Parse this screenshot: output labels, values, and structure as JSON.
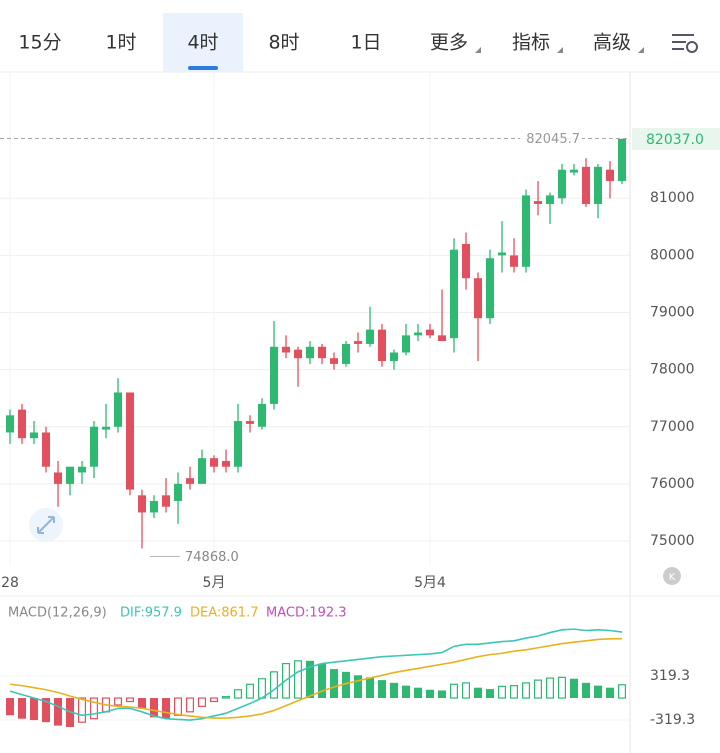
{
  "tabs": [
    "15分",
    "1时",
    "4时",
    "8时",
    "1日",
    "更多",
    "指标",
    "高级"
  ],
  "selected_tab": 2,
  "chart_data": [
    {
      "type": "candlestick",
      "categories": [
        "28",
        null,
        null,
        null,
        null,
        null,
        null,
        null,
        null,
        null,
        null,
        null,
        null,
        null,
        null,
        null,
        null,
        "5月",
        null,
        null,
        null,
        null,
        null,
        null,
        null,
        null,
        null,
        null,
        null,
        null,
        null,
        null,
        null,
        null,
        null,
        "5月4",
        null,
        null,
        null,
        null,
        null,
        null,
        null,
        null,
        null,
        null,
        null,
        null,
        null,
        null,
        null,
        null
      ],
      "open": [
        76900,
        77300,
        76800,
        76900,
        76200,
        76000,
        76200,
        76300,
        76950,
        77000,
        77600,
        75800,
        75500,
        75800,
        75700,
        76100,
        76000,
        76450,
        76400,
        76300,
        77100,
        77000,
        77400,
        78400,
        78350,
        78200,
        78400,
        78200,
        78100,
        78500,
        78450,
        78700,
        78150,
        78300,
        78600,
        78700,
        78600,
        78550,
        80200,
        79600,
        78900,
        80000,
        80000,
        79800,
        80950,
        80900,
        81000,
        81450,
        81550,
        80900,
        81500,
        81300
      ],
      "high": [
        77300,
        77400,
        77100,
        77000,
        76400,
        76300,
        76400,
        77100,
        77400,
        77850,
        77600,
        75900,
        75800,
        76100,
        76200,
        76300,
        76600,
        76500,
        76600,
        77400,
        77200,
        77500,
        78850,
        78600,
        78400,
        78500,
        78450,
        78300,
        78500,
        78650,
        79100,
        78800,
        78350,
        78800,
        78800,
        78800,
        79400,
        80300,
        80400,
        79700,
        80100,
        80600,
        80300,
        81150,
        81300,
        81100,
        81600,
        81600,
        81700,
        81600,
        81650,
        82045.7
      ],
      "low": [
        76700,
        76700,
        76700,
        76200,
        75600,
        75800,
        76000,
        76100,
        76800,
        76900,
        75800,
        74868,
        75400,
        75500,
        75300,
        75900,
        76000,
        76200,
        76200,
        76200,
        76900,
        76950,
        77300,
        78200,
        77700,
        78100,
        78100,
        78000,
        78050,
        78300,
        78400,
        78050,
        78000,
        78250,
        78500,
        78550,
        78500,
        78300,
        79400,
        78150,
        78800,
        79700,
        79700,
        79700,
        80700,
        80550,
        80900,
        81400,
        80850,
        80650,
        81000,
        81250
      ],
      "close": [
        77200,
        76800,
        76900,
        76300,
        76000,
        76300,
        76300,
        77000,
        77000,
        77600,
        75900,
        75500,
        75700,
        75600,
        76000,
        76000,
        76450,
        76300,
        76300,
        77100,
        77050,
        77400,
        78400,
        78300,
        78200,
        78400,
        78200,
        78100,
        78450,
        78450,
        78700,
        78150,
        78300,
        78600,
        78650,
        78600,
        78500,
        80100,
        79600,
        78900,
        79950,
        80050,
        79800,
        81050,
        80900,
        81050,
        81500,
        81500,
        80900,
        81550,
        81300,
        82037
      ],
      "up_color": "#2eb872",
      "down_color": "#e0505e",
      "ylim": [
        74580,
        83210
      ],
      "yticks": [
        75000,
        76000,
        77000,
        78000,
        79000,
        80000,
        81000
      ],
      "max_label": 82045.7,
      "min_label": {
        "value": 74868,
        "label": "74868.0"
      },
      "last_price": {
        "value": 82037,
        "label": "82037.0"
      },
      "grid": true
    },
    {
      "type": "macd",
      "title": "MACD(12,26,9)",
      "histogram": {
        "legend_label": "MACD:192.3",
        "label_color": "#c04fc0",
        "values": [
          -250,
          -300,
          -320,
          -350,
          -400,
          -420,
          -350,
          -300,
          -200,
          -100,
          -50,
          -150,
          -280,
          -300,
          -250,
          -200,
          -120,
          -50,
          20,
          120,
          200,
          280,
          380,
          500,
          540,
          540,
          500,
          420,
          380,
          330,
          300,
          260,
          220,
          180,
          150,
          120,
          110,
          200,
          220,
          150,
          130,
          170,
          180,
          220,
          260,
          290,
          300,
          280,
          220,
          180,
          150,
          192.3
        ]
      },
      "series": [
        {
          "name": "DIF",
          "legend_label": "DIF:957.9",
          "color": "#3cc6b8",
          "values": [
            100,
            50,
            0,
            -50,
            -120,
            -200,
            -250,
            -230,
            -200,
            -150,
            -150,
            -200,
            -260,
            -300,
            -310,
            -320,
            -300,
            -260,
            -220,
            -150,
            -80,
            0,
            120,
            260,
            380,
            450,
            500,
            520,
            540,
            560,
            580,
            600,
            610,
            620,
            630,
            640,
            660,
            750,
            780,
            780,
            800,
            820,
            830,
            870,
            900,
            950,
            990,
            1000,
            980,
            990,
            980,
            957.9
          ]
        },
        {
          "name": "DEA",
          "legend_label": "DEA:861.7",
          "color": "#e8b21e",
          "values": [
            200,
            180,
            150,
            120,
            80,
            30,
            -20,
            -60,
            -100,
            -120,
            -130,
            -150,
            -180,
            -210,
            -240,
            -260,
            -280,
            -290,
            -290,
            -280,
            -260,
            -230,
            -180,
            -110,
            -40,
            30,
            100,
            160,
            210,
            250,
            290,
            330,
            370,
            400,
            430,
            460,
            490,
            520,
            560,
            600,
            630,
            650,
            680,
            700,
            730,
            760,
            790,
            810,
            830,
            850,
            860,
            861.7
          ]
        }
      ],
      "up_color": "#2eb872",
      "down_color": "#e0505e",
      "ylim": [
        -754,
        1350
      ],
      "yticks": [
        319.3,
        -319.3
      ]
    }
  ]
}
